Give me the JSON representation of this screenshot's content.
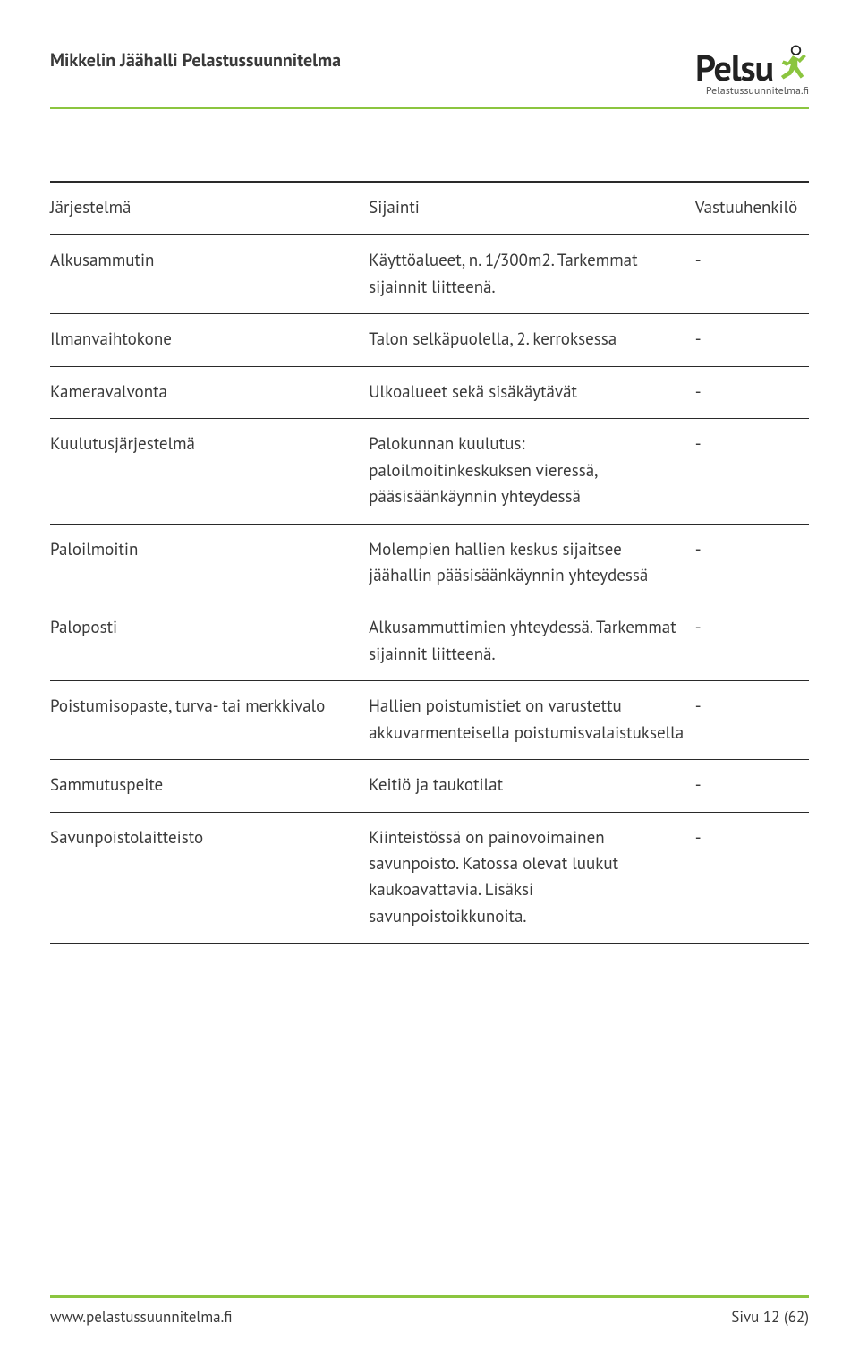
{
  "header": {
    "title": "Mikkelin Jäähalli Pelastussuunnitelma",
    "logo_text": "Pelsu",
    "logo_subtext": "Pelastussuunnitelma.fi",
    "logo_person_color": "#8bc53f",
    "logo_head_border": "#222222"
  },
  "colors": {
    "rule_green": "#8bc53f",
    "rule_black": "#2a2a2a",
    "text": "#3a3a3a"
  },
  "table": {
    "columns": [
      "Järjestelmä",
      "Sijainti",
      "Vastuuhenkilö"
    ],
    "rows": [
      {
        "c1": "Alkusammutin",
        "c2": "Käyttöalueet, n. 1/300m2. Tarkemmat sijainnit liitteenä.",
        "c3": "-"
      },
      {
        "c1": "Ilmanvaihtokone",
        "c2": "Talon selkäpuolella, 2. kerroksessa",
        "c3": "-"
      },
      {
        "c1": "Kameravalvonta",
        "c2": "Ulkoalueet sekä sisäkäytävät",
        "c3": "-"
      },
      {
        "c1": "Kuulutusjärjestelmä",
        "c2": "Palokunnan kuulutus: paloilmoitinkeskuksen vieressä, pääsisäänkäynnin yhteydessä",
        "c3": "-"
      },
      {
        "c1": "Paloilmoitin",
        "c2": "Molempien hallien keskus sijaitsee jäähallin pääsisäänkäynnin yhteydessä",
        "c3": "-"
      },
      {
        "c1": "Paloposti",
        "c2": "Alkusammuttimien yhteydessä. Tarkemmat sijainnit liitteenä.",
        "c3": "-"
      },
      {
        "c1": "Poistumisopaste, turva- tai merkkivalo",
        "c2": "Hallien poistumistiet on varustettu akkuvarmenteisella poistumisvalaistuksella",
        "c3": "-"
      },
      {
        "c1": "Sammutuspeite",
        "c2": "Keitiö ja taukotilat",
        "c3": "-"
      },
      {
        "c1": "Savunpoistolaitteisto",
        "c2": "Kiinteistössä on painovoimainen savunpoisto. Katossa olevat luukut kaukoavattavia. Lisäksi savunpoistoikkunoita.",
        "c3": "-"
      }
    ]
  },
  "footer": {
    "left": "www.pelastussuunnitelma.fi",
    "right": "Sivu 12 (62)"
  }
}
